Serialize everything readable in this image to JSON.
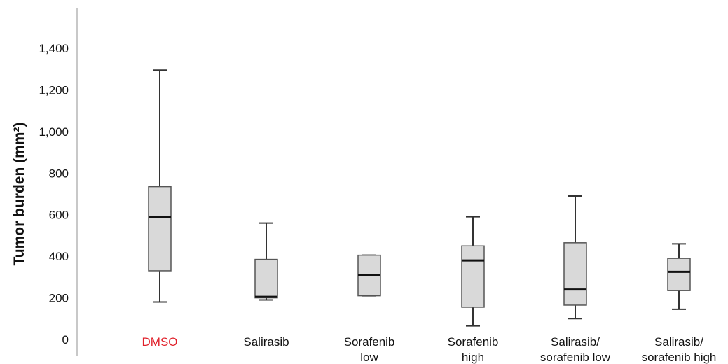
{
  "chart_data": {
    "type": "box",
    "title": "",
    "xlabel": "",
    "ylabel": "Tumor burden (mm²)",
    "ylim": [
      0,
      1400
    ],
    "yticks": [
      "0",
      "200",
      "400",
      "600",
      "800",
      "1,000",
      "1,200",
      "1,400"
    ],
    "grid": false,
    "legend": "none",
    "colors": {
      "box_fill": "#d9d9d9",
      "box_stroke": "#555555",
      "median": "#111111",
      "whisker": "#333333",
      "axis": "#c8c8c8",
      "highlight_label": "#e0202a",
      "label": "#111111"
    },
    "categories": [
      {
        "label": [
          "DMSO"
        ],
        "highlight": true
      },
      {
        "label": [
          "Salirasib"
        ],
        "highlight": false
      },
      {
        "label": [
          "Sorafenib",
          "low"
        ],
        "highlight": false
      },
      {
        "label": [
          "Sorafenib",
          "high"
        ],
        "highlight": false
      },
      {
        "label": [
          "Salirasib/",
          "sorafenib low"
        ],
        "highlight": false
      },
      {
        "label": [
          "Salirasib/",
          "sorafenib high"
        ],
        "highlight": false
      }
    ],
    "boxes": [
      {
        "min": 180,
        "q1": 330,
        "median": 590,
        "q3": 735,
        "max": 1295
      },
      {
        "min": 190,
        "q1": 200,
        "median": 205,
        "q3": 385,
        "max": 560
      },
      {
        "min": 210,
        "q1": 210,
        "median": 310,
        "q3": 405,
        "max": 405
      },
      {
        "min": 65,
        "q1": 155,
        "median": 380,
        "q3": 450,
        "max": 590
      },
      {
        "min": 100,
        "q1": 165,
        "median": 240,
        "q3": 465,
        "max": 690
      },
      {
        "min": 145,
        "q1": 235,
        "median": 325,
        "q3": 390,
        "max": 460
      }
    ]
  }
}
